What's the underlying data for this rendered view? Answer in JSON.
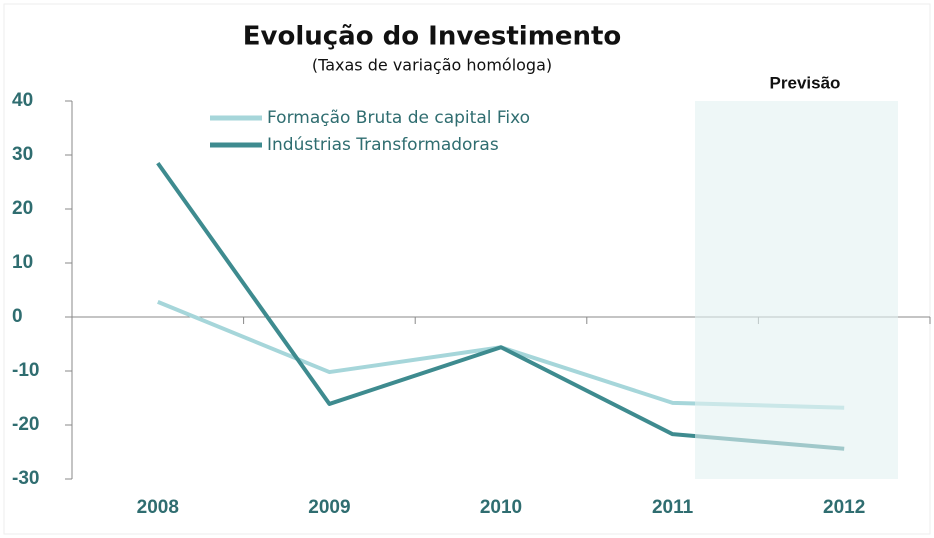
{
  "chart_data": {
    "type": "line",
    "title": "Evolução do Investimento",
    "subtitle": "(Taxas de variação homóloga)",
    "annotation": "Previsão",
    "categories": [
      "2008",
      "2009",
      "2010",
      "2011",
      "2012"
    ],
    "series": [
      {
        "name": "Formação Bruta de capital Fixo",
        "color": "#a6d6da",
        "values": [
          2.8,
          -10.2,
          -5.6,
          -15.9,
          -16.8
        ]
      },
      {
        "name": "Indústrias Transformadoras",
        "color": "#3e8b8f",
        "values": [
          28.5,
          -16.1,
          -5.6,
          -21.7,
          -24.4
        ]
      }
    ],
    "ylim": [
      -30,
      40
    ],
    "yticks": [
      -30,
      -20,
      -10,
      0,
      10,
      20,
      30,
      40
    ],
    "legend": "top-left"
  }
}
